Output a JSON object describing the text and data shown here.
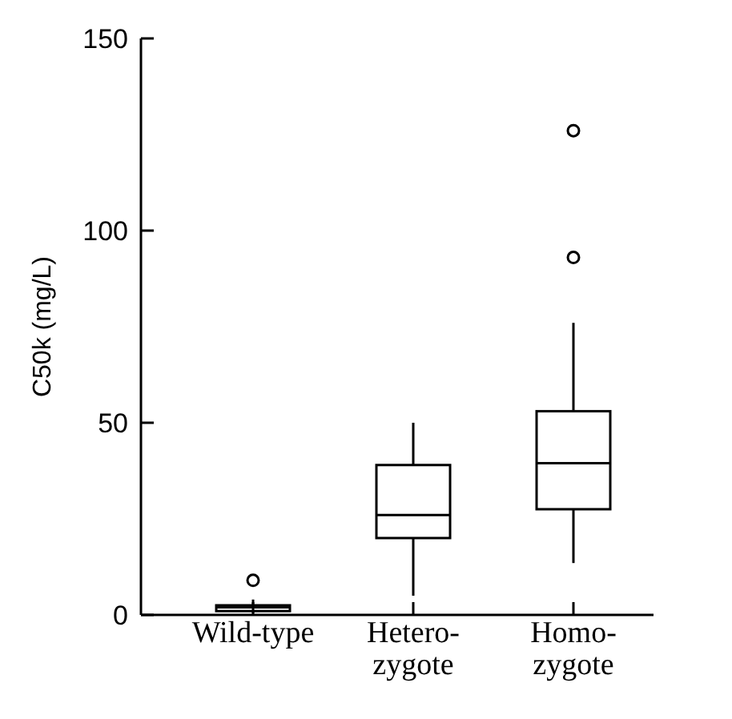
{
  "chart_data": {
    "type": "box",
    "ylabel": "C50k (mg/L)",
    "categories": [
      "Wild-type",
      "Hetero-\nzygote",
      "Homo-\nzygote"
    ],
    "ylim": [
      0,
      150
    ],
    "yticks": [
      0,
      50,
      100,
      150
    ],
    "grid": false,
    "boxes": [
      {
        "low": 0.5,
        "q1": 1,
        "median": 2,
        "q3": 2.5,
        "high": 4,
        "outliers": [
          9
        ]
      },
      {
        "low": 5,
        "q1": 20,
        "median": 26,
        "q3": 39,
        "high": 50
      },
      {
        "low": 13.5,
        "q1": 27.5,
        "median": 39.5,
        "q3": 53,
        "high": 76,
        "outliers": [
          93,
          126
        ]
      }
    ]
  }
}
